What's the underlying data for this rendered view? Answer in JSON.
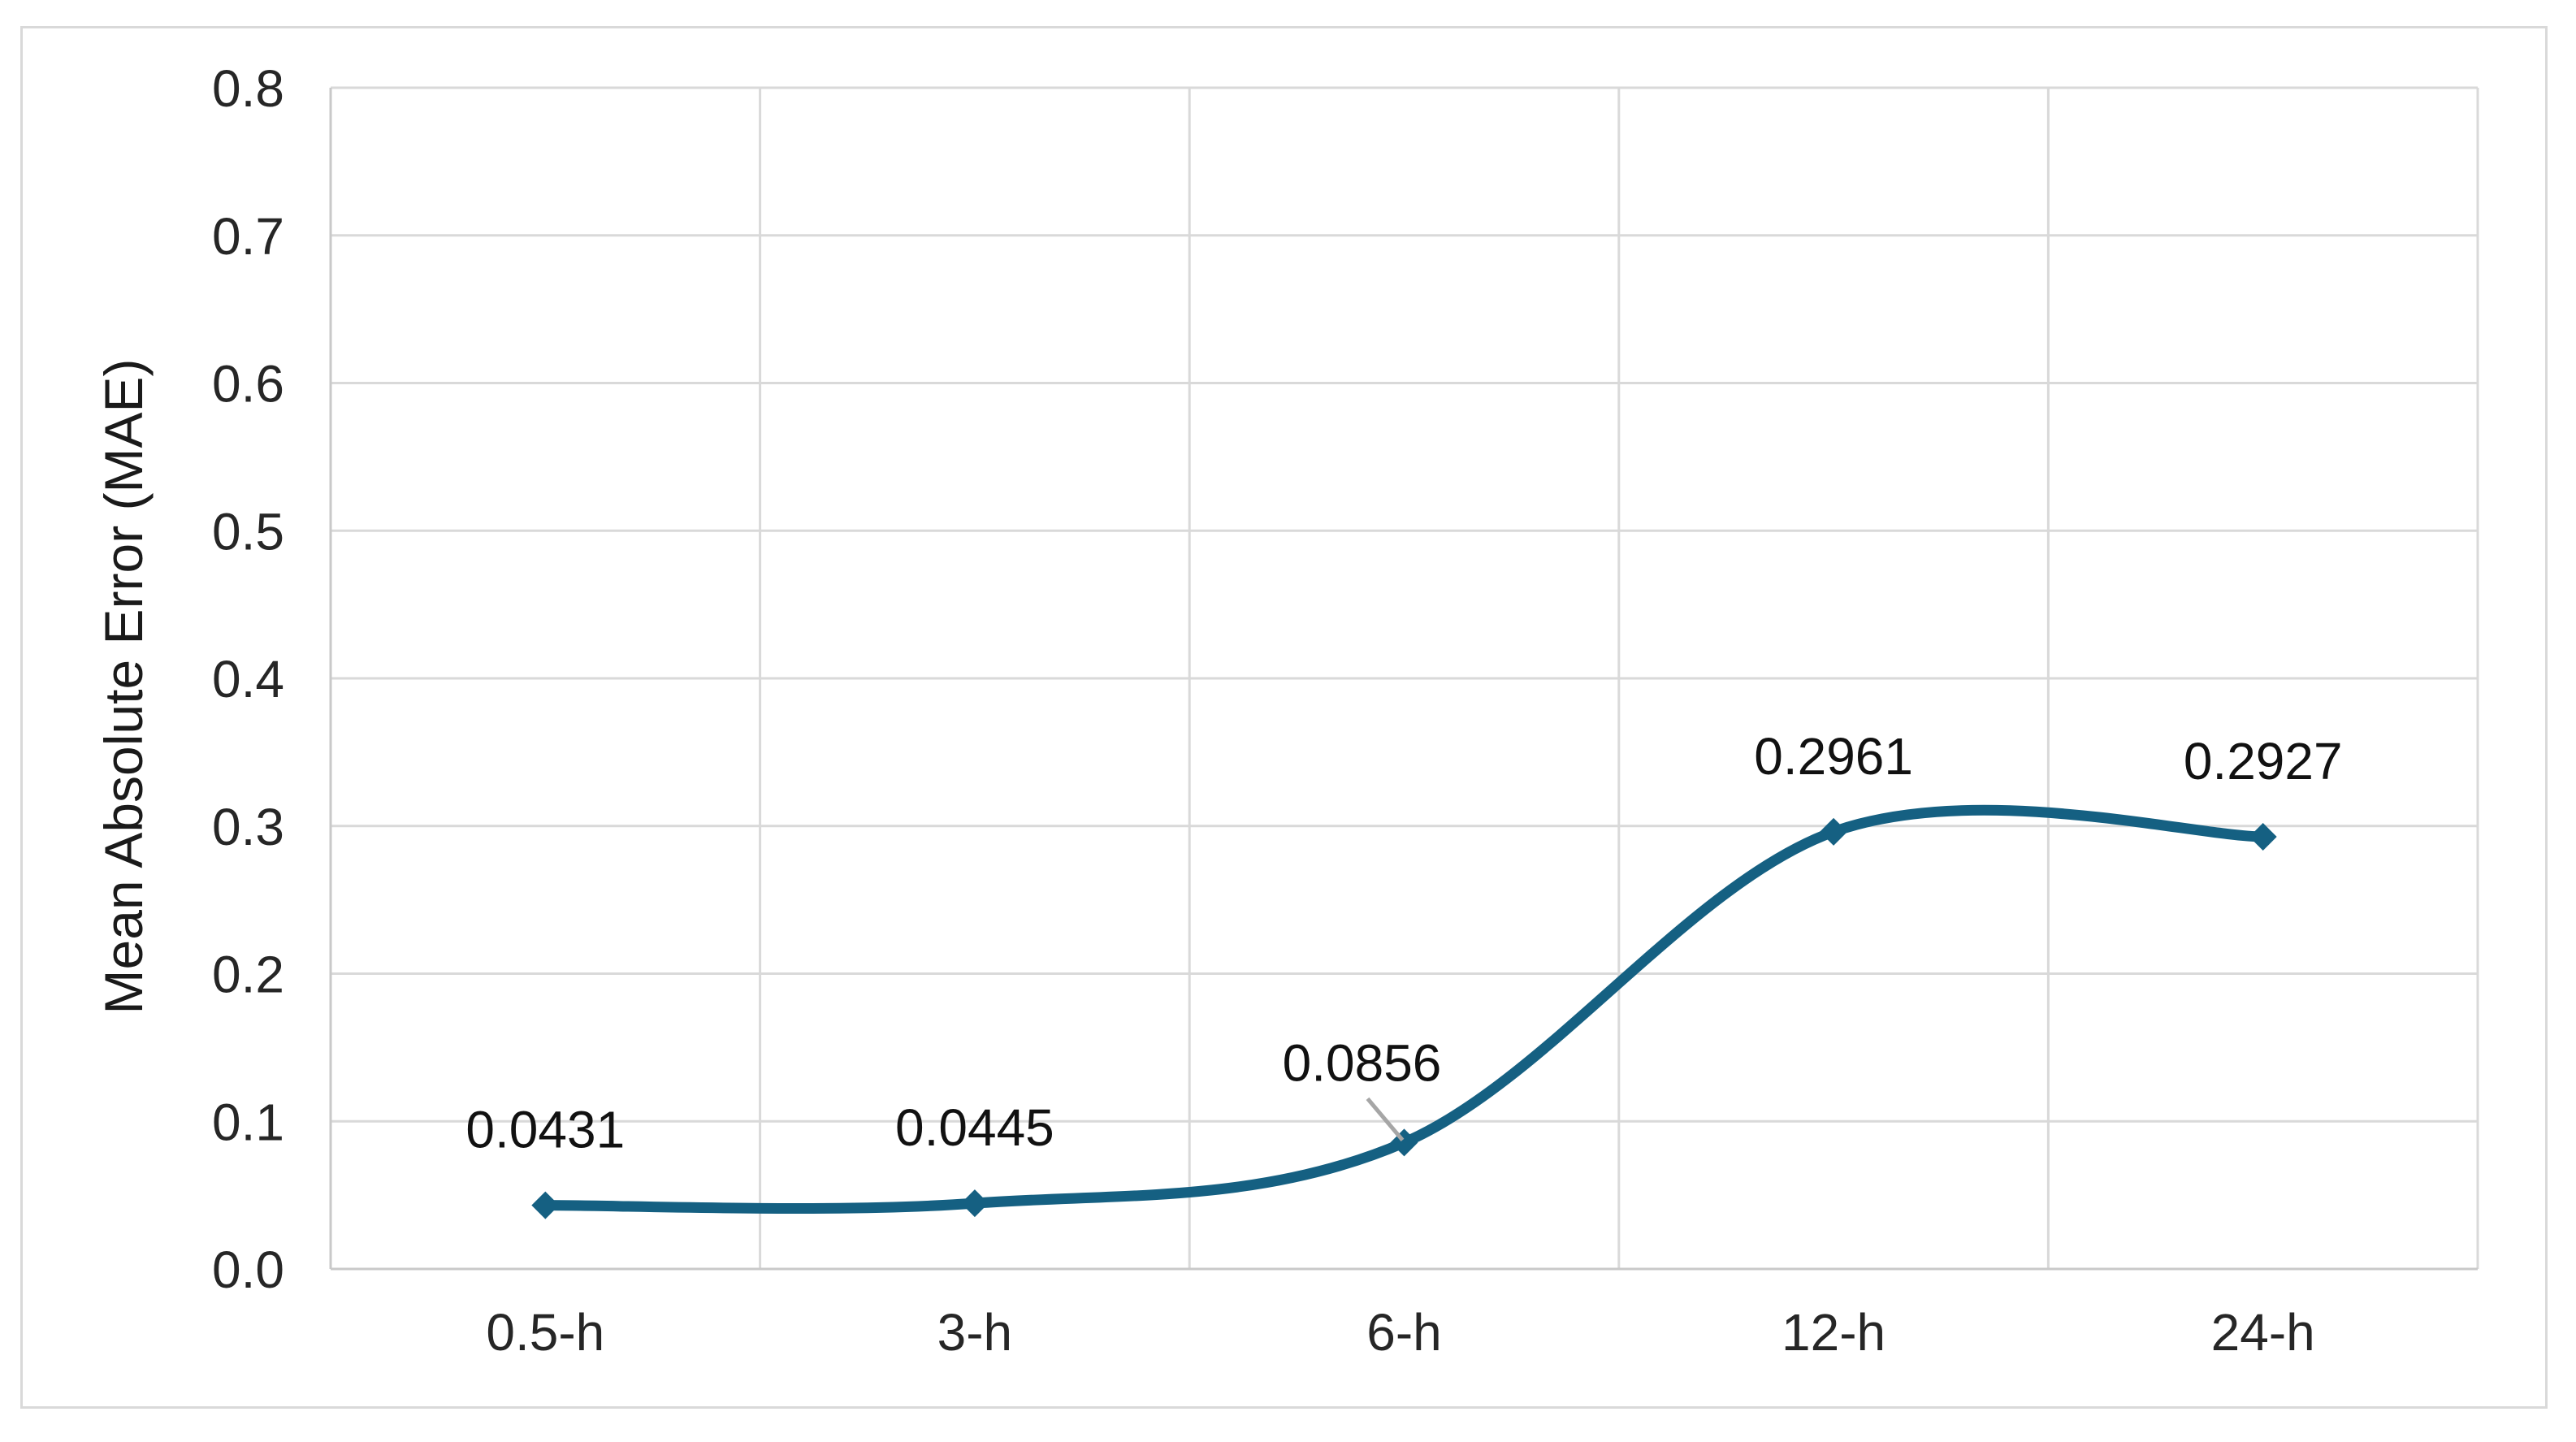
{
  "chart_data": {
    "type": "line",
    "title": "",
    "categories": [
      "0.5-h",
      "3-h",
      "6-h",
      "12-h",
      "24-h"
    ],
    "values": [
      0.0431,
      0.0445,
      0.0856,
      0.2961,
      0.2927
    ],
    "data_labels": [
      "0.0431",
      "0.0445",
      "0.0856",
      "0.2961",
      "0.2927"
    ],
    "xlabel": "",
    "ylabel": "Mean Absolute Error (MAE)",
    "ylim": [
      0,
      0.8
    ],
    "ytick_labels": [
      "0.0",
      "0.1",
      "0.2",
      "0.3",
      "0.4",
      "0.5",
      "0.6",
      "0.7",
      "0.8"
    ],
    "grid": true,
    "legend": "none",
    "smoothed": true,
    "marker": "diamond",
    "leader_line_category": "6-h",
    "series_name": "MAE"
  },
  "colors": {
    "series_line": "#156082",
    "marker_fill": "#156082",
    "gridline": "#d9d9d9",
    "axis_line": "#c9c9c9",
    "tick_text": "#262626",
    "label_text": "#111111",
    "leader_line": "#a6a6a6",
    "frame_border": "#d9d9d9",
    "background": "#ffffff"
  }
}
